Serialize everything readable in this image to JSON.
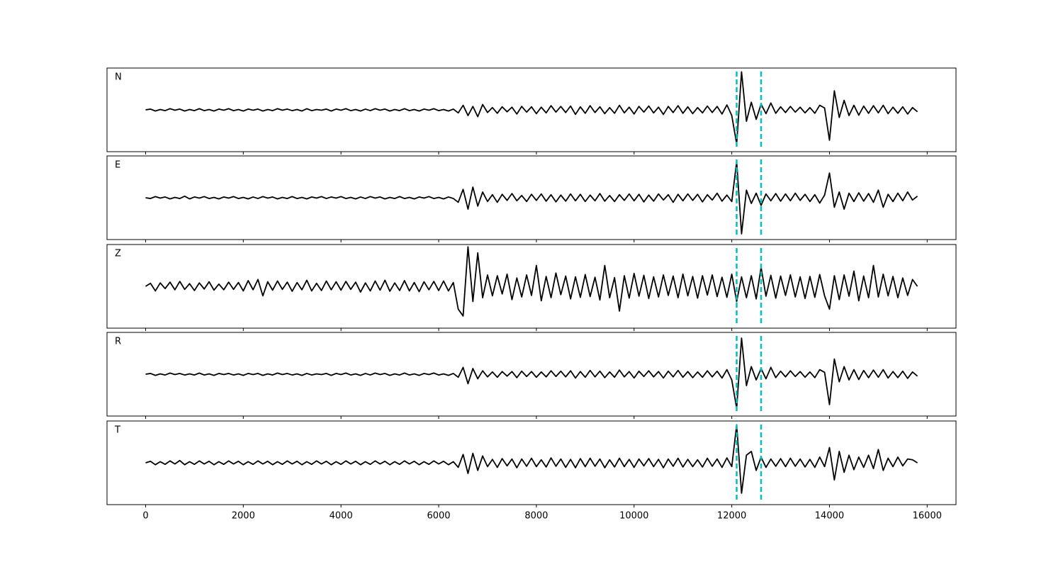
{
  "chart_data": {
    "type": "line",
    "x": [
      0,
      100,
      200,
      300,
      400,
      500,
      600,
      700,
      800,
      900,
      1000,
      1100,
      1200,
      1300,
      1400,
      1500,
      1600,
      1700,
      1800,
      1900,
      2000,
      2100,
      2200,
      2300,
      2400,
      2500,
      2600,
      2700,
      2800,
      2900,
      3000,
      3100,
      3200,
      3300,
      3400,
      3500,
      3600,
      3700,
      3800,
      3900,
      4000,
      4100,
      4200,
      4300,
      4400,
      4500,
      4600,
      4700,
      4800,
      4900,
      5000,
      5100,
      5200,
      5300,
      5400,
      5500,
      5600,
      5700,
      5800,
      5900,
      6000,
      6100,
      6200,
      6300,
      6400,
      6500,
      6600,
      6700,
      6800,
      6900,
      7000,
      7100,
      7200,
      7300,
      7400,
      7500,
      7600,
      7700,
      7800,
      7900,
      8000,
      8100,
      8200,
      8300,
      8400,
      8500,
      8600,
      8700,
      8800,
      8900,
      9000,
      9100,
      9200,
      9300,
      9400,
      9500,
      9600,
      9700,
      9800,
      9900,
      10000,
      10100,
      10200,
      10300,
      10400,
      10500,
      10600,
      10700,
      10800,
      10900,
      11000,
      11100,
      11200,
      11300,
      11400,
      11500,
      11600,
      11700,
      11800,
      11900,
      12000,
      12100,
      12200,
      12300,
      12400,
      12500,
      12600,
      12700,
      12800,
      12900,
      13000,
      13100,
      13200,
      13300,
      13400,
      13500,
      13600,
      13700,
      13800,
      13900,
      14000,
      14100,
      14200,
      14300,
      14400,
      14500,
      14600,
      14700,
      14800,
      14900,
      15000,
      15100,
      15200,
      15300,
      15400,
      15500,
      15600,
      15700,
      15800
    ],
    "xlim": [
      -790,
      16590
    ],
    "xticks": [
      0,
      2000,
      4000,
      6000,
      8000,
      10000,
      12000,
      14000,
      16000
    ],
    "ylim": [
      -11,
      11
    ],
    "vlines": [
      12100,
      12600
    ],
    "vline_color": "#00bfbf",
    "series": [
      {
        "name": "N",
        "color": "#000000",
        "values": [
          0,
          0.2,
          -0.3,
          0.1,
          -0.2,
          0.3,
          -0.1,
          0.2,
          -0.3,
          0.1,
          -0.2,
          0.3,
          -0.2,
          0.1,
          -0.3,
          0.2,
          -0.1,
          0.3,
          -0.2,
          0.1,
          -0.3,
          0.2,
          -0.1,
          0.2,
          -0.3,
          0.1,
          -0.2,
          0.3,
          -0.1,
          0.2,
          -0.2,
          0.1,
          -0.3,
          0.3,
          -0.2,
          0.1,
          -0.1,
          0.2,
          -0.3,
          0.2,
          -0.1,
          0.3,
          -0.2,
          0.1,
          -0.3,
          0.2,
          -0.2,
          0.3,
          -0.1,
          0.2,
          -0.3,
          0.1,
          -0.2,
          0.3,
          -0.2,
          0.1,
          -0.3,
          0.2,
          -0.1,
          0.3,
          -0.2,
          0.1,
          -0.3,
          0.2,
          -0.8,
          1.2,
          -1.5,
          0.9,
          -1.8,
          1.4,
          -0.7,
          0.6,
          -0.9,
          0.8,
          -0.5,
          0.7,
          -1.1,
          0.9,
          -0.6,
          0.8,
          -1,
          0.7,
          -0.8,
          1.1,
          -0.6,
          0.9,
          -0.7,
          1,
          -1.2,
          0.8,
          -0.9,
          1.1,
          -0.7,
          0.8,
          -1,
          0.6,
          -0.9,
          1.2,
          -0.8,
          0.7,
          -1.1,
          0.9,
          -0.6,
          1,
          -0.8,
          0.7,
          -1.2,
          0.9,
          -0.7,
          1.1,
          -0.9,
          0.8,
          -1,
          0.6,
          -0.8,
          1,
          -0.7,
          0.9,
          -1.1,
          1.3,
          -1.5,
          -9,
          10,
          -3,
          2,
          -2.5,
          1.5,
          -1,
          1.8,
          -0.9,
          0.8,
          -0.7,
          0.9,
          -0.6,
          0.7,
          -0.8,
          0.6,
          -0.9,
          1.2,
          0.5,
          -8,
          5,
          -2,
          2.5,
          -1.5,
          1.2,
          -1.4,
          1,
          -0.9,
          1.1,
          -0.8,
          1.2,
          -1,
          0.7,
          -0.9,
          0.8,
          -1.1,
          0.6,
          -0.5
        ]
      },
      {
        "name": "E",
        "color": "#000000",
        "values": [
          0,
          -0.2,
          0.3,
          -0.1,
          0.2,
          -0.3,
          0.1,
          -0.2,
          0.4,
          -0.3,
          0.2,
          -0.1,
          0.3,
          -0.2,
          0.1,
          -0.3,
          0.2,
          -0.1,
          0.3,
          -0.2,
          0.1,
          -0.3,
          0.2,
          -0.2,
          0.3,
          -0.1,
          0.2,
          -0.3,
          0.1,
          -0.2,
          0.3,
          -0.2,
          0.1,
          -0.3,
          0.2,
          -0.1,
          0.3,
          -0.2,
          0.2,
          -0.1,
          0.3,
          -0.2,
          0.1,
          -0.3,
          0.2,
          -0.2,
          0.3,
          -0.1,
          0.2,
          -0.3,
          0.1,
          -0.2,
          0.3,
          -0.2,
          0.1,
          -0.3,
          0.2,
          -0.1,
          0.3,
          -0.2,
          0.1,
          -0.3,
          0.2,
          -0.2,
          -1.2,
          2.2,
          -3,
          2.8,
          -2.2,
          1.5,
          -1,
          0.8,
          -1.2,
          0.9,
          -0.7,
          1.1,
          -0.8,
          0.6,
          -1,
          0.9,
          -0.7,
          1,
          -0.9,
          0.8,
          -1.1,
          0.7,
          -0.9,
          1,
          -0.8,
          0.9,
          -1,
          0.7,
          -0.8,
          1.1,
          -0.9,
          0.6,
          -1,
          0.8,
          -0.7,
          1,
          -0.8,
          0.9,
          -1.1,
          0.7,
          -0.9,
          1,
          -0.6,
          0.8,
          -1.2,
          0.9,
          -0.8,
          1,
          -0.7,
          0.9,
          -1.1,
          0.8,
          -0.6,
          1.2,
          -0.9,
          0.7,
          -1,
          9.5,
          -9.5,
          2,
          -1.5,
          1.2,
          -2,
          1,
          -0.8,
          1.1,
          -0.9,
          1,
          -0.8,
          1.2,
          -0.7,
          0.9,
          -1,
          0.8,
          -1.4,
          0.7,
          6.5,
          -2.5,
          1.5,
          -3,
          1.2,
          -1,
          1.3,
          -0.9,
          1.1,
          -1.2,
          2,
          -2.5,
          0.9,
          -1,
          1.2,
          -0.8,
          1.5,
          -0.6,
          0.4
        ]
      },
      {
        "name": "Z",
        "color": "#000000",
        "values": [
          0,
          0.8,
          -1.2,
          0.9,
          -0.6,
          1.1,
          -0.9,
          1.3,
          -0.8,
          0.7,
          -1.1,
          0.9,
          -0.7,
          1.2,
          -1,
          0.6,
          -0.9,
          1.1,
          -0.8,
          1,
          -1.2,
          1.5,
          -0.9,
          1.8,
          -2.5,
          1.2,
          -1,
          1.4,
          -0.8,
          1.1,
          -1.3,
          1,
          -0.9,
          1.6,
          -1.2,
          0.8,
          -1.1,
          1.4,
          -0.9,
          1.2,
          -1,
          1.3,
          -0.8,
          1.1,
          -1.5,
          0.9,
          -1.2,
          1.4,
          -1,
          1.6,
          -1.3,
          0.9,
          -1.1,
          1.5,
          -1.2,
          1,
          -1.4,
          1.2,
          -0.9,
          1.3,
          -1.1,
          1.4,
          -1.2,
          1,
          -6,
          -7.8,
          10.4,
          -4,
          8.8,
          -3,
          3,
          -2.5,
          2.8,
          -2,
          3.2,
          -3.5,
          2.2,
          -2.8,
          3,
          -2.4,
          5.5,
          -3.8,
          2.6,
          -3,
          3.5,
          -2.2,
          2.7,
          -3.3,
          2.5,
          -2.9,
          3.1,
          -2.7,
          2.4,
          -3.6,
          5.5,
          -3,
          2.3,
          -6.5,
          2.8,
          -3.1,
          3.4,
          -2.6,
          2.9,
          -3.2,
          2.5,
          -2.8,
          3,
          -2.4,
          2.7,
          -3,
          3.2,
          -2.5,
          2.6,
          -3.1,
          2.8,
          -2.3,
          3,
          -2.7,
          2.4,
          -2.9,
          3.2,
          -4,
          2.5,
          -3,
          2.8,
          -3.3,
          5,
          -2.6,
          2.9,
          -3.1,
          2.7,
          -2.4,
          3,
          -2.8,
          2.5,
          -3.2,
          2.6,
          -2.9,
          3.1,
          -2.5,
          -6,
          2.8,
          -3.5,
          3,
          -2.6,
          4,
          -3.8,
          2.7,
          -3,
          5.5,
          -2.8,
          3.2,
          -2.5,
          2.6,
          -3,
          2.2,
          -2.4,
          1.8,
          0
        ]
      },
      {
        "name": "R",
        "color": "#000000",
        "values": [
          0,
          0.2,
          -0.3,
          0.1,
          -0.2,
          0.3,
          -0.1,
          0.2,
          -0.2,
          0.1,
          -0.2,
          0.3,
          -0.2,
          0.1,
          -0.3,
          0.2,
          -0.1,
          0.2,
          -0.2,
          0.1,
          -0.3,
          0.2,
          -0.1,
          0.2,
          -0.3,
          0.1,
          -0.2,
          0.3,
          -0.1,
          0.2,
          -0.2,
          0.1,
          -0.3,
          0.2,
          -0.2,
          0.1,
          -0.1,
          0.2,
          -0.3,
          0.2,
          -0.1,
          0.3,
          -0.2,
          0.1,
          -0.3,
          0.2,
          -0.2,
          0.3,
          -0.1,
          0.2,
          -0.3,
          0.1,
          -0.2,
          0.3,
          -0.2,
          0.1,
          -0.3,
          0.2,
          -0.1,
          0.3,
          -0.2,
          0.1,
          -0.3,
          0.2,
          -0.8,
          1.8,
          -2.5,
          1.5,
          -1.2,
          0.9,
          -0.7,
          0.6,
          -0.8,
          0.7,
          -0.5,
          0.7,
          -0.9,
          0.8,
          -0.6,
          0.7,
          -0.8,
          0.6,
          -0.7,
          0.9,
          -0.6,
          0.8,
          -0.7,
          0.9,
          -1,
          0.7,
          -0.8,
          1,
          -0.7,
          0.8,
          -0.9,
          0.6,
          -0.8,
          1.1,
          -0.7,
          0.7,
          -1,
          0.8,
          -0.6,
          0.9,
          -0.7,
          0.7,
          -1,
          0.8,
          -0.7,
          1,
          -0.8,
          0.7,
          -0.9,
          0.6,
          -0.8,
          0.9,
          -0.7,
          0.8,
          -1,
          1.2,
          -1.5,
          -9,
          9.5,
          -3,
          2,
          -1.5,
          1.5,
          -1.2,
          1.8,
          -0.9,
          0.8,
          -0.7,
          0.9,
          -0.6,
          0.7,
          -0.8,
          0.6,
          -0.9,
          1.2,
          0.5,
          -8,
          4,
          -2,
          2,
          -1.5,
          1.2,
          -1.4,
          1,
          -0.9,
          1.1,
          -0.8,
          1.2,
          -1,
          0.7,
          -0.9,
          0.8,
          -1.1,
          0.6,
          -0.5
        ]
      },
      {
        "name": "T",
        "color": "#000000",
        "values": [
          0,
          0.4,
          -0.5,
          0.3,
          -0.4,
          0.5,
          -0.3,
          0.6,
          -0.5,
          0.3,
          -0.4,
          0.5,
          -0.3,
          0.4,
          -0.5,
          0.3,
          -0.4,
          0.5,
          -0.3,
          0.4,
          -0.5,
          0.3,
          -0.4,
          0.5,
          -0.3,
          0.4,
          -0.5,
          0.3,
          -0.4,
          0.5,
          -0.3,
          0.4,
          -0.5,
          0.3,
          -0.4,
          0.5,
          -0.3,
          0.4,
          -0.5,
          0.3,
          -0.4,
          0.5,
          -0.3,
          0.4,
          -0.5,
          0.3,
          -0.4,
          0.5,
          -0.3,
          0.4,
          -0.5,
          0.3,
          -0.4,
          0.5,
          -0.3,
          0.4,
          -0.5,
          0.3,
          -0.4,
          0.5,
          -0.3,
          0.4,
          -0.5,
          0.3,
          -1.2,
          2.2,
          -2.8,
          2.5,
          -2,
          1.8,
          -1,
          0.9,
          -1.2,
          1.1,
          -0.8,
          1,
          -1.3,
          1,
          -0.9,
          1.2,
          -1,
          0.8,
          -1.1,
          1.3,
          -0.9,
          1,
          -1.2,
          0.9,
          -1.3,
          1.1,
          -1,
          1.2,
          -0.9,
          1,
          -1.3,
          0.8,
          -1.1,
          1.2,
          -1,
          0.9,
          -1.2,
          1,
          -0.8,
          1.1,
          -1,
          0.9,
          -1.3,
          1,
          -0.9,
          1.2,
          -1.1,
          0.9,
          -1,
          0.8,
          -1.1,
          1.2,
          -0.9,
          1,
          -1.2,
          1.3,
          -1,
          10,
          -8,
          2,
          3,
          -2,
          1.5,
          -1.2,
          1,
          -0.9,
          1.1,
          -1,
          1.2,
          -0.9,
          1,
          -1.1,
          0.9,
          -1.2,
          1.5,
          -1,
          4,
          -4.5,
          3,
          -2.5,
          2,
          -1.8,
          1.5,
          -1.2,
          2,
          -1.5,
          3.5,
          -2,
          1.2,
          -1,
          1.5,
          -0.8,
          1,
          0.8,
          0
        ]
      }
    ]
  }
}
